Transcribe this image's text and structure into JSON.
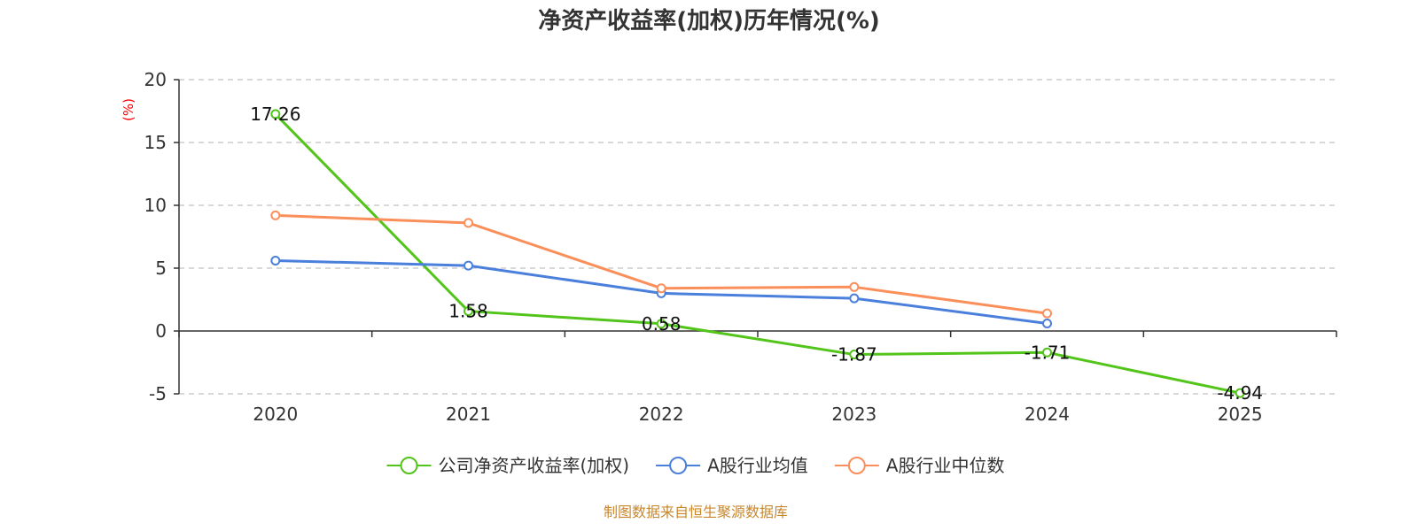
{
  "chart_data": {
    "type": "line",
    "title": "净资产收益率(加权)历年情况(%)",
    "ylabel": "(%)",
    "categories": [
      "2020",
      "2021",
      "2022",
      "2023",
      "2024",
      "2025"
    ],
    "ylim": [
      -5,
      20
    ],
    "yticks": [
      -5,
      0,
      5,
      10,
      15,
      20
    ],
    "grid": true,
    "legend_position": "bottom-center",
    "series": [
      {
        "name": "公司净资产收益率(加权)",
        "color": "#52c41a",
        "values": [
          17.26,
          1.58,
          0.58,
          -1.87,
          -1.71,
          -4.94
        ],
        "labels": [
          "17.26",
          "1.58",
          "0.58",
          "-1.87",
          "-1.71",
          "-4.94"
        ]
      },
      {
        "name": "A股行业均值",
        "color": "#4a7fdc",
        "values": [
          5.6,
          5.2,
          3.0,
          2.6,
          0.6,
          null
        ]
      },
      {
        "name": "A股行业中位数",
        "color": "#fb8f5a",
        "values": [
          9.2,
          8.6,
          3.4,
          3.5,
          1.4,
          null
        ]
      }
    ],
    "source": "制图数据来自恒生聚源数据库"
  }
}
